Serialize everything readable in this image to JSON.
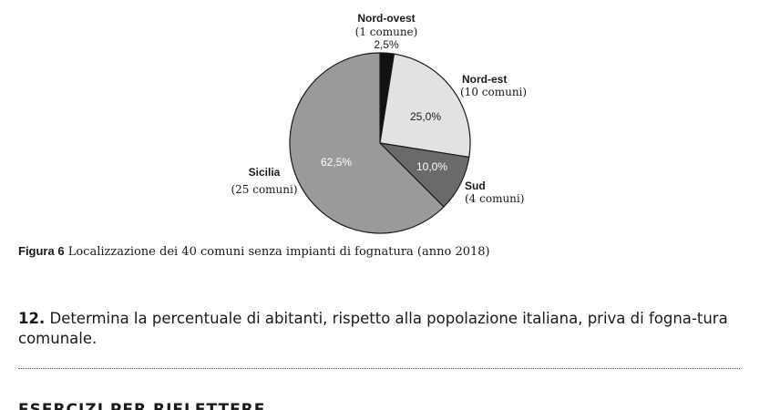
{
  "chart_data": {
    "type": "pie",
    "slices": [
      {
        "label": "Nord-ovest",
        "count_text": "(1 comune)",
        "value": 2.5,
        "pct_text": "2,5%",
        "color": "#111111",
        "pct_color": "#1a1a1a"
      },
      {
        "label": "Nord-est",
        "count_text": "(10 comuni)",
        "value": 25.0,
        "pct_text": "25,0%",
        "color": "#e2e2e4",
        "pct_color": "#1a1a1a"
      },
      {
        "label": "Sud",
        "count_text": "(4 comuni)",
        "value": 10.0,
        "pct_text": "10,0%",
        "color": "#6a6a6c",
        "pct_color": "#ffffff"
      },
      {
        "label": "Sicilia",
        "count_text": "(25 comuni)",
        "value": 62.5,
        "pct_text": "62,5%",
        "color": "#9a9a9c",
        "pct_color": "#ffffff"
      }
    ],
    "start": "12 o'clock, clockwise"
  },
  "caption": {
    "figure_label": "Figura 6",
    "text": "Localizzazione dei 40 comuni senza impianti di fognatura (anno 2018)"
  },
  "question": {
    "number": "12.",
    "text": "Determina la percentuale di abitanti, rispetto alla popolazione italiana, priva di fogna-tura comunale."
  },
  "next_heading": "ESERCIZI PER RIFLETTERE"
}
